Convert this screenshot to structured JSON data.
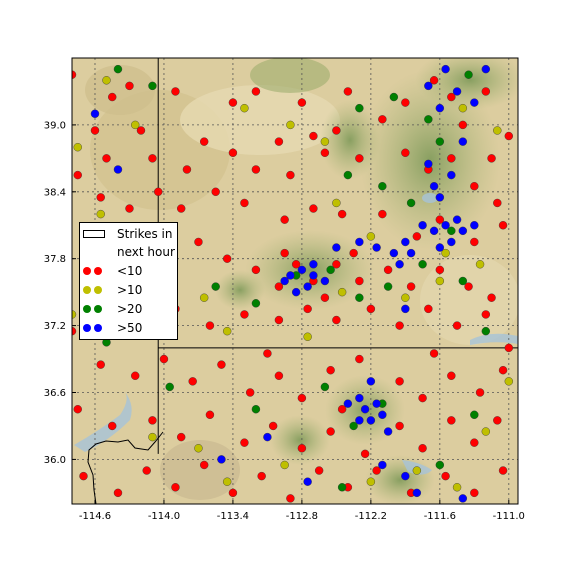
{
  "chart_data": {
    "type": "scatter",
    "title": "",
    "xlabel": "",
    "ylabel": "",
    "xlim": [
      -114.8,
      -110.92
    ],
    "ylim": [
      35.6,
      39.6
    ],
    "x_ticks": [
      "-114.6",
      "-114.0",
      "-113.4",
      "-112.8",
      "-112.2",
      "-111.6",
      "-111.0"
    ],
    "y_ticks": [
      "39.0",
      "38.4",
      "37.8",
      "37.2",
      "36.6",
      "36.0"
    ],
    "x_tick_values": [
      -114.6,
      -114.0,
      -113.4,
      -112.8,
      -112.2,
      -111.6,
      -111.0
    ],
    "y_tick_values": [
      39.0,
      38.4,
      37.8,
      37.2,
      36.6,
      36.0
    ],
    "grid": true,
    "legend": {
      "placement": "center-left",
      "title_entry": "Strikes in next hour",
      "entries": [
        {
          "label": "<10",
          "color": "#ff0000"
        },
        {
          "label": ">10",
          "color": "#bfbf00"
        },
        {
          "label": ">20",
          "color": "#008000"
        },
        {
          "label": ">50",
          "color": "#0000ff"
        }
      ]
    },
    "state_borders": {
      "nevada_utah_lon": -114.05,
      "utah_arizona_lat": 37.0
    },
    "series": [
      {
        "name": "<10",
        "color": "#ff0000",
        "points": [
          [
            -114.8,
            39.45
          ],
          [
            -114.3,
            39.35
          ],
          [
            -113.9,
            39.3
          ],
          [
            -113.4,
            39.2
          ],
          [
            -113.2,
            39.3
          ],
          [
            -112.8,
            39.2
          ],
          [
            -112.7,
            38.9
          ],
          [
            -112.4,
            39.3
          ],
          [
            -112.1,
            39.05
          ],
          [
            -111.9,
            39.2
          ],
          [
            -111.65,
            39.4
          ],
          [
            -111.5,
            39.25
          ],
          [
            -111.2,
            39.3
          ],
          [
            -111.0,
            38.9
          ],
          [
            -114.45,
            39.25
          ],
          [
            -114.6,
            38.95
          ],
          [
            -114.2,
            38.95
          ],
          [
            -114.5,
            38.7
          ],
          [
            -114.1,
            38.7
          ],
          [
            -113.8,
            38.6
          ],
          [
            -113.4,
            38.75
          ],
          [
            -113.2,
            38.6
          ],
          [
            -113.0,
            38.85
          ],
          [
            -112.6,
            38.75
          ],
          [
            -112.3,
            38.7
          ],
          [
            -111.9,
            38.75
          ],
          [
            -111.7,
            38.6
          ],
          [
            -111.5,
            38.7
          ],
          [
            -111.3,
            38.45
          ],
          [
            -111.1,
            38.3
          ],
          [
            -114.75,
            38.55
          ],
          [
            -114.55,
            38.35
          ],
          [
            -114.3,
            38.25
          ],
          [
            -114.05,
            38.4
          ],
          [
            -113.85,
            38.25
          ],
          [
            -113.55,
            38.4
          ],
          [
            -113.3,
            38.3
          ],
          [
            -112.95,
            38.15
          ],
          [
            -112.7,
            38.25
          ],
          [
            -112.45,
            38.2
          ],
          [
            -112.1,
            38.2
          ],
          [
            -111.8,
            38.0
          ],
          [
            -111.6,
            38.15
          ],
          [
            -111.3,
            37.95
          ],
          [
            -111.05,
            38.1
          ],
          [
            -114.65,
            37.95
          ],
          [
            -114.35,
            37.9
          ],
          [
            -114.1,
            37.95
          ],
          [
            -113.7,
            37.95
          ],
          [
            -113.45,
            37.8
          ],
          [
            -113.2,
            37.7
          ],
          [
            -112.95,
            37.85
          ],
          [
            -112.7,
            37.6
          ],
          [
            -112.5,
            37.75
          ],
          [
            -112.3,
            37.6
          ],
          [
            -112.05,
            37.7
          ],
          [
            -111.85,
            37.55
          ],
          [
            -111.6,
            37.7
          ],
          [
            -111.35,
            37.55
          ],
          [
            -111.15,
            37.45
          ],
          [
            -114.8,
            37.15
          ],
          [
            -114.5,
            37.35
          ],
          [
            -114.2,
            37.25
          ],
          [
            -113.9,
            37.35
          ],
          [
            -113.6,
            37.2
          ],
          [
            -113.3,
            37.3
          ],
          [
            -113.0,
            37.25
          ],
          [
            -112.75,
            37.35
          ],
          [
            -112.5,
            37.25
          ],
          [
            -112.2,
            37.35
          ],
          [
            -111.95,
            37.2
          ],
          [
            -111.7,
            37.35
          ],
          [
            -111.45,
            37.2
          ],
          [
            -111.2,
            37.3
          ],
          [
            -111.0,
            37.0
          ],
          [
            -114.55,
            36.85
          ],
          [
            -114.25,
            36.75
          ],
          [
            -114.0,
            36.9
          ],
          [
            -113.75,
            36.7
          ],
          [
            -113.5,
            36.85
          ],
          [
            -113.25,
            36.6
          ],
          [
            -113.0,
            36.75
          ],
          [
            -112.8,
            36.55
          ],
          [
            -112.55,
            36.8
          ],
          [
            -112.3,
            36.9
          ],
          [
            -111.95,
            36.7
          ],
          [
            -111.75,
            36.55
          ],
          [
            -111.5,
            36.75
          ],
          [
            -111.25,
            36.6
          ],
          [
            -111.05,
            36.8
          ],
          [
            -114.75,
            36.45
          ],
          [
            -114.45,
            36.3
          ],
          [
            -114.1,
            36.35
          ],
          [
            -113.85,
            36.2
          ],
          [
            -113.6,
            36.4
          ],
          [
            -113.3,
            36.15
          ],
          [
            -113.05,
            36.3
          ],
          [
            -112.8,
            36.1
          ],
          [
            -112.55,
            36.25
          ],
          [
            -112.25,
            36.05
          ],
          [
            -111.95,
            36.3
          ],
          [
            -111.75,
            36.1
          ],
          [
            -111.5,
            36.35
          ],
          [
            -111.3,
            36.15
          ],
          [
            -111.1,
            36.35
          ],
          [
            -114.7,
            35.85
          ],
          [
            -114.4,
            35.7
          ],
          [
            -114.15,
            35.9
          ],
          [
            -113.9,
            35.75
          ],
          [
            -113.65,
            35.95
          ],
          [
            -113.4,
            35.7
          ],
          [
            -113.15,
            35.85
          ],
          [
            -112.9,
            35.65
          ],
          [
            -112.65,
            35.9
          ],
          [
            -112.4,
            35.75
          ],
          [
            -112.15,
            35.9
          ],
          [
            -111.85,
            35.7
          ],
          [
            -111.55,
            35.85
          ],
          [
            -111.3,
            35.7
          ],
          [
            -111.05,
            35.9
          ],
          [
            -113.0,
            37.55
          ],
          [
            -112.85,
            37.75
          ],
          [
            -112.6,
            37.45
          ],
          [
            -112.35,
            37.85
          ],
          [
            -112.9,
            38.55
          ],
          [
            -112.5,
            38.95
          ],
          [
            -111.4,
            39.0
          ],
          [
            -111.15,
            38.7
          ],
          [
            -113.65,
            38.85
          ],
          [
            -113.1,
            36.95
          ],
          [
            -112.45,
            36.45
          ],
          [
            -111.65,
            36.95
          ]
        ]
      },
      {
        "name": ">10",
        "color": "#bfbf00",
        "points": [
          [
            -114.5,
            39.4
          ],
          [
            -114.25,
            39.0
          ],
          [
            -113.3,
            39.15
          ],
          [
            -112.9,
            39.0
          ],
          [
            -112.6,
            38.85
          ],
          [
            -111.4,
            39.15
          ],
          [
            -111.1,
            38.95
          ],
          [
            -114.75,
            38.8
          ],
          [
            -114.55,
            38.2
          ],
          [
            -112.5,
            38.3
          ],
          [
            -112.2,
            38.0
          ],
          [
            -111.55,
            37.85
          ],
          [
            -111.25,
            37.75
          ],
          [
            -114.8,
            37.3
          ],
          [
            -113.65,
            37.45
          ],
          [
            -113.45,
            37.15
          ],
          [
            -112.75,
            37.1
          ],
          [
            -112.45,
            37.5
          ],
          [
            -111.9,
            37.45
          ],
          [
            -111.6,
            37.6
          ],
          [
            -111.0,
            36.7
          ],
          [
            -113.7,
            36.1
          ],
          [
            -113.45,
            35.8
          ],
          [
            -112.95,
            35.95
          ],
          [
            -112.2,
            35.8
          ],
          [
            -111.8,
            35.9
          ],
          [
            -111.45,
            35.75
          ],
          [
            -111.2,
            36.25
          ],
          [
            -114.1,
            36.2
          ]
        ]
      },
      {
        "name": ">20",
        "color": "#008000",
        "points": [
          [
            -114.4,
            39.5
          ],
          [
            -114.1,
            39.35
          ],
          [
            -112.3,
            39.15
          ],
          [
            -112.0,
            39.25
          ],
          [
            -111.7,
            39.05
          ],
          [
            -111.35,
            39.45
          ],
          [
            -111.6,
            38.85
          ],
          [
            -112.4,
            38.55
          ],
          [
            -112.1,
            38.45
          ],
          [
            -111.85,
            38.3
          ],
          [
            -111.5,
            38.05
          ],
          [
            -113.55,
            37.55
          ],
          [
            -113.2,
            37.4
          ],
          [
            -112.85,
            37.65
          ],
          [
            -112.55,
            37.7
          ],
          [
            -112.3,
            37.45
          ],
          [
            -112.05,
            37.55
          ],
          [
            -111.75,
            37.75
          ],
          [
            -111.4,
            37.6
          ],
          [
            -111.2,
            37.15
          ],
          [
            -114.5,
            37.05
          ],
          [
            -113.95,
            36.65
          ],
          [
            -113.2,
            36.45
          ],
          [
            -112.6,
            36.65
          ],
          [
            -112.35,
            36.3
          ],
          [
            -112.1,
            36.5
          ],
          [
            -111.3,
            36.4
          ],
          [
            -111.6,
            35.95
          ],
          [
            -112.45,
            35.75
          ]
        ]
      },
      {
        "name": ">50",
        "color": "#0000ff",
        "points": [
          [
            -114.6,
            39.1
          ],
          [
            -114.4,
            38.6
          ],
          [
            -111.7,
            39.35
          ],
          [
            -111.55,
            39.5
          ],
          [
            -111.45,
            39.3
          ],
          [
            -111.3,
            39.2
          ],
          [
            -111.2,
            39.5
          ],
          [
            -111.6,
            39.15
          ],
          [
            -111.4,
            38.85
          ],
          [
            -111.7,
            38.65
          ],
          [
            -111.5,
            38.55
          ],
          [
            -111.6,
            38.35
          ],
          [
            -111.75,
            38.1
          ],
          [
            -111.65,
            38.05
          ],
          [
            -111.55,
            38.1
          ],
          [
            -111.45,
            38.15
          ],
          [
            -111.4,
            38.05
          ],
          [
            -111.3,
            38.1
          ],
          [
            -111.5,
            37.95
          ],
          [
            -111.6,
            37.9
          ],
          [
            -111.9,
            37.95
          ],
          [
            -111.85,
            37.85
          ],
          [
            -111.95,
            37.75
          ],
          [
            -112.0,
            37.85
          ],
          [
            -112.15,
            37.9
          ],
          [
            -112.3,
            37.95
          ],
          [
            -112.9,
            37.65
          ],
          [
            -112.8,
            37.7
          ],
          [
            -112.7,
            37.65
          ],
          [
            -112.75,
            37.55
          ],
          [
            -112.85,
            37.5
          ],
          [
            -112.95,
            37.6
          ],
          [
            -112.6,
            37.6
          ],
          [
            -112.7,
            37.75
          ],
          [
            -112.3,
            36.55
          ],
          [
            -112.25,
            36.45
          ],
          [
            -112.2,
            36.35
          ],
          [
            -112.15,
            36.5
          ],
          [
            -112.1,
            36.4
          ],
          [
            -112.05,
            36.25
          ],
          [
            -112.3,
            36.35
          ],
          [
            -112.2,
            36.7
          ],
          [
            -112.4,
            36.5
          ],
          [
            -111.9,
            35.85
          ],
          [
            -111.8,
            35.7
          ],
          [
            -112.1,
            35.95
          ],
          [
            -111.4,
            35.65
          ],
          [
            -113.1,
            36.2
          ],
          [
            -112.75,
            35.8
          ],
          [
            -113.5,
            36.0
          ],
          [
            -112.5,
            37.9
          ],
          [
            -111.9,
            37.35
          ],
          [
            -111.65,
            38.45
          ]
        ]
      }
    ]
  },
  "legend": {
    "title_line1": "Strikes in",
    "title_line2": "next hour",
    "label_lt10": "<10",
    "label_gt10": ">10",
    "label_gt20": ">20",
    "label_gt50": ">50",
    "color_lt10": "#ff0000",
    "color_gt10": "#bfbf00",
    "color_gt20": "#008000",
    "color_gt50": "#0000ff"
  }
}
